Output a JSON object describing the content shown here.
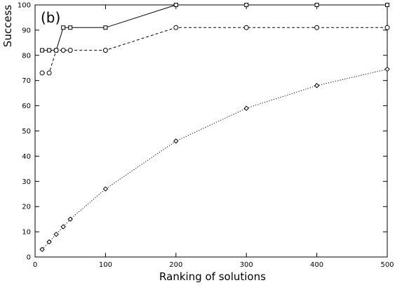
{
  "chart_data": {
    "type": "line",
    "panel_label": "(b)",
    "xlabel": "Ranking of solutions",
    "ylabel": "Success",
    "xlim": [
      0,
      500
    ],
    "ylim": [
      0,
      100
    ],
    "xticks": [
      0,
      100,
      200,
      300,
      400,
      500
    ],
    "yticks": [
      0,
      10,
      20,
      30,
      40,
      50,
      60,
      70,
      80,
      90,
      100
    ],
    "grid": false,
    "legend": "none",
    "series": [
      {
        "marker": "square",
        "line_style": "solid",
        "color": "#000000",
        "x": [
          10,
          20,
          30,
          40,
          50,
          100,
          200,
          300,
          400,
          500
        ],
        "y": [
          82,
          82,
          82,
          91,
          91,
          91,
          100,
          100,
          100,
          100
        ]
      },
      {
        "marker": "circle",
        "line_style": "dashed",
        "color": "#000000",
        "x": [
          10,
          20,
          30,
          40,
          50,
          100,
          200,
          300,
          400,
          500
        ],
        "y": [
          73,
          73,
          82,
          82,
          82,
          82,
          91,
          91,
          91,
          91
        ]
      },
      {
        "marker": "diamond",
        "line_style": "dotted",
        "color": "#000000",
        "x": [
          10,
          20,
          30,
          40,
          50,
          100,
          200,
          300,
          400,
          500
        ],
        "y": [
          3,
          6,
          9,
          12,
          15,
          27,
          46,
          59,
          68,
          74.5
        ]
      }
    ]
  }
}
